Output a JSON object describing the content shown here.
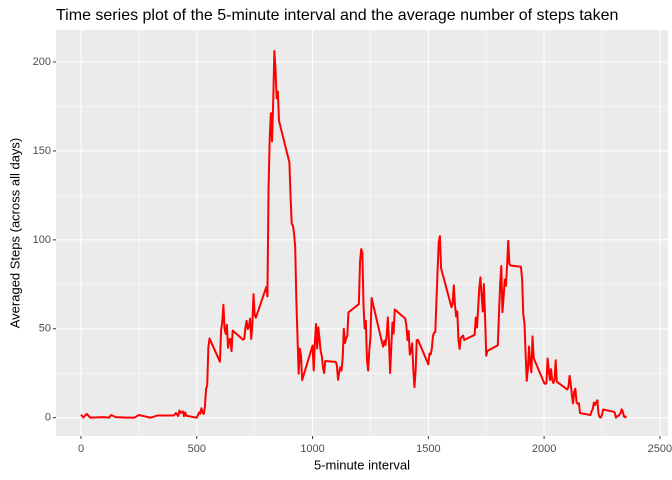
{
  "chart_data": {
    "type": "line",
    "title": "Time series plot of the 5-minute interval and the average number of steps taken",
    "x_label": "5-minute interval",
    "y_label": "Averaged Steps (across all days)",
    "xlim": [
      -108,
      2535
    ],
    "ylim": [
      -10.3,
      218
    ],
    "xticks": [
      0,
      500,
      1000,
      1500,
      2000,
      2500
    ],
    "yticks": [
      0,
      50,
      100,
      150,
      200
    ],
    "grid": true,
    "minor_grid": true,
    "series": [
      {
        "name": "steps",
        "color": "#ff0000",
        "x": [
          0,
          10,
          25,
          40,
          55,
          100,
          120,
          130,
          150,
          200,
          230,
          250,
          300,
          330,
          400,
          410,
          420,
          425,
          430,
          440,
          445,
          450,
          455,
          500,
          505,
          510,
          515,
          520,
          525,
          530,
          535,
          540,
          545,
          550,
          555,
          600,
          605,
          610,
          615,
          620,
          625,
          630,
          635,
          640,
          645,
          650,
          655,
          700,
          705,
          710,
          715,
          720,
          725,
          730,
          735,
          740,
          745,
          750,
          755,
          800,
          805,
          810,
          815,
          820,
          825,
          830,
          835,
          840,
          845,
          850,
          855,
          900,
          905,
          910,
          915,
          920,
          925,
          930,
          935,
          940,
          945,
          950,
          955,
          1000,
          1005,
          1010,
          1015,
          1020,
          1025,
          1030,
          1035,
          1040,
          1045,
          1050,
          1055,
          1100,
          1105,
          1110,
          1115,
          1120,
          1125,
          1130,
          1135,
          1140,
          1145,
          1150,
          1155,
          1200,
          1205,
          1210,
          1215,
          1220,
          1225,
          1230,
          1235,
          1240,
          1245,
          1250,
          1255,
          1300,
          1305,
          1310,
          1315,
          1320,
          1325,
          1330,
          1335,
          1340,
          1345,
          1350,
          1355,
          1400,
          1405,
          1410,
          1415,
          1420,
          1425,
          1430,
          1435,
          1440,
          1445,
          1450,
          1455,
          1500,
          1505,
          1510,
          1515,
          1520,
          1525,
          1530,
          1535,
          1540,
          1545,
          1550,
          1555,
          1600,
          1605,
          1610,
          1615,
          1620,
          1625,
          1630,
          1635,
          1640,
          1645,
          1650,
          1655,
          1700,
          1705,
          1710,
          1715,
          1720,
          1725,
          1730,
          1735,
          1740,
          1745,
          1750,
          1755,
          1800,
          1805,
          1810,
          1815,
          1820,
          1825,
          1830,
          1835,
          1840,
          1845,
          1850,
          1855,
          1900,
          1905,
          1910,
          1915,
          1920,
          1925,
          1930,
          1935,
          1940,
          1945,
          1950,
          1955,
          2000,
          2005,
          2010,
          2015,
          2020,
          2025,
          2030,
          2035,
          2040,
          2045,
          2050,
          2055,
          2100,
          2105,
          2110,
          2115,
          2120,
          2125,
          2130,
          2135,
          2140,
          2145,
          2150,
          2155,
          2200,
          2205,
          2210,
          2215,
          2220,
          2225,
          2230,
          2235,
          2240,
          2245,
          2250,
          2255,
          2300,
          2305,
          2310,
          2315,
          2320,
          2325,
          2330,
          2335,
          2340,
          2345,
          2350,
          2355
        ],
        "values": [
          1.7,
          0.1,
          2.1,
          0,
          0.1,
          0.3,
          0,
          1.5,
          0.3,
          0,
          0,
          1.5,
          0,
          1.2,
          1.2,
          2.6,
          0.9,
          4,
          2.7,
          3.5,
          0.8,
          3,
          1.1,
          0,
          1.5,
          3,
          2.2,
          5.3,
          2.9,
          2.1,
          6,
          16,
          18.3,
          39.5,
          44.5,
          31.5,
          49.3,
          53.8,
          63.5,
          50,
          47.1,
          52.2,
          39.3,
          44,
          44.2,
          37.4,
          49,
          43.8,
          44.4,
          50.5,
          54.5,
          49.9,
          51,
          55.7,
          44.3,
          52.3,
          69.5,
          57.8,
          56.2,
          73.4,
          68.2,
          129.4,
          157.5,
          171.2,
          155.4,
          177.3,
          206.2,
          195.9,
          179.6,
          183.4,
          167,
          143.5,
          124,
          109.1,
          108.1,
          103.7,
          96,
          66.2,
          45.2,
          24.8,
          38.8,
          35,
          21.1,
          40.6,
          26.5,
          42.4,
          52.7,
          38.9,
          50.8,
          44.3,
          37.4,
          34.7,
          28.3,
          25.1,
          31.9,
          31.4,
          29.7,
          21.3,
          25.5,
          28.4,
          26.5,
          33.4,
          50,
          42,
          44.6,
          46,
          59.2,
          63.9,
          87.7,
          94.8,
          92.8,
          63.4,
          50.2,
          54.5,
          32.4,
          26.5,
          37.7,
          45.1,
          67.3,
          42.3,
          39.9,
          43.3,
          40.9,
          46.2,
          56.4,
          42.8,
          25.1,
          39.9,
          53.5,
          47.3,
          60.8,
          55.8,
          51.9,
          43.6,
          48.7,
          35.5,
          37.5,
          41.8,
          27.5,
          17.1,
          26.1,
          43.6,
          43.8,
          30,
          36.1,
          35.5,
          38.8,
          46,
          47.8,
          48.1,
          65.3,
          82.9,
          98.7,
          102.1,
          84,
          62.1,
          64.1,
          74.5,
          63.2,
          56.9,
          59.8,
          43.9,
          38.6,
          44.7,
          45.5,
          46.2,
          43.7,
          46.6,
          56.3,
          50.7,
          61.2,
          72.7,
          78.9,
          68.9,
          59.7,
          75.1,
          56.5,
          34.8,
          37.5,
          40.7,
          58,
          74.7,
          85.3,
          59.3,
          67.8,
          77.7,
          74.2,
          85.3,
          99.5,
          86.6,
          85.6,
          84.9,
          77.8,
          58,
          53.4,
          36.3,
          20.7,
          27.4,
          40,
          30.2,
          25.5,
          45.7,
          33.5,
          19.6,
          19,
          19.3,
          33.3,
          26.8,
          21.2,
          27.3,
          21.3,
          19.5,
          21.3,
          32.3,
          20.2,
          15.9,
          17.2,
          23.5,
          19.2,
          12.5,
          8,
          14.7,
          16.3,
          8.7,
          7.8,
          8.1,
          2.6,
          1.5,
          3.7,
          4.8,
          8.5,
          7.1,
          8.7,
          9.8,
          2.2,
          0.3,
          0.1,
          1.6,
          4.6,
          3.3,
          2.8,
          0,
          0.8,
          1,
          1.6,
          2.6,
          4.7,
          3.3,
          0.6,
          0.2,
          1.1
        ]
      }
    ]
  }
}
